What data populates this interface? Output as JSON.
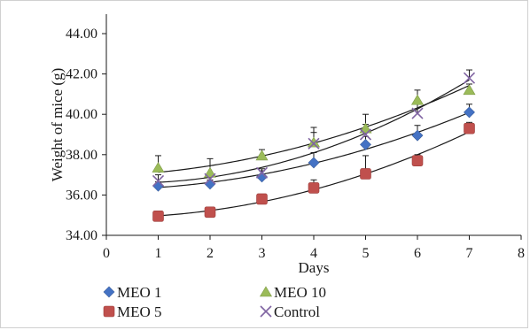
{
  "chart_data": {
    "type": "scatter",
    "title": "",
    "xlabel": "Days",
    "ylabel": "Weight of mice (g)",
    "xlim": [
      0,
      8
    ],
    "ylim": [
      34.0,
      44.0
    ],
    "x_ticks": [
      "0",
      "1",
      "2",
      "3",
      "4",
      "5",
      "6",
      "7",
      "8"
    ],
    "y_ticks": [
      "34.00",
      "36.00",
      "38.00",
      "40.00",
      "42.00",
      "44.00"
    ],
    "grid": false,
    "legend_position": "bottom",
    "trendlines": "polynomial",
    "series": [
      {
        "name": "MEO 1",
        "marker": "diamond",
        "color": "#4472c4",
        "x": [
          1,
          2,
          3,
          4,
          5,
          6,
          7
        ],
        "y": [
          36.45,
          36.55,
          36.9,
          37.6,
          38.5,
          38.95,
          40.1
        ],
        "err": [
          0.2,
          0.2,
          0.3,
          0.5,
          0.4,
          0.5,
          0.4
        ]
      },
      {
        "name": "MEO 10",
        "marker": "triangle",
        "color": "#9bbb59",
        "x": [
          1,
          2,
          3,
          4,
          5,
          6,
          7
        ],
        "y": [
          37.35,
          37.1,
          37.95,
          38.6,
          39.3,
          40.7,
          41.2
        ],
        "err": [
          0.6,
          0.7,
          0.3,
          0.5,
          0.7,
          0.5,
          0.3
        ]
      },
      {
        "name": "MEO 5",
        "marker": "square",
        "color": "#c0504d",
        "x": [
          1,
          2,
          3,
          4,
          5,
          6,
          7
        ],
        "y": [
          34.95,
          35.15,
          35.8,
          36.35,
          37.05,
          37.7,
          39.3
        ],
        "err": [
          0.25,
          0.15,
          0.2,
          0.4,
          0.9,
          0.3,
          0.3
        ]
      },
      {
        "name": "Control",
        "marker": "x",
        "color": "#8064a2",
        "x": [
          1,
          2,
          3,
          4,
          5,
          6,
          7
        ],
        "y": [
          36.7,
          36.8,
          37.1,
          38.55,
          39.0,
          40.05,
          41.8
        ],
        "err": [
          0.3,
          0.2,
          0.2,
          0.8,
          0.5,
          0.6,
          0.4
        ]
      }
    ]
  }
}
